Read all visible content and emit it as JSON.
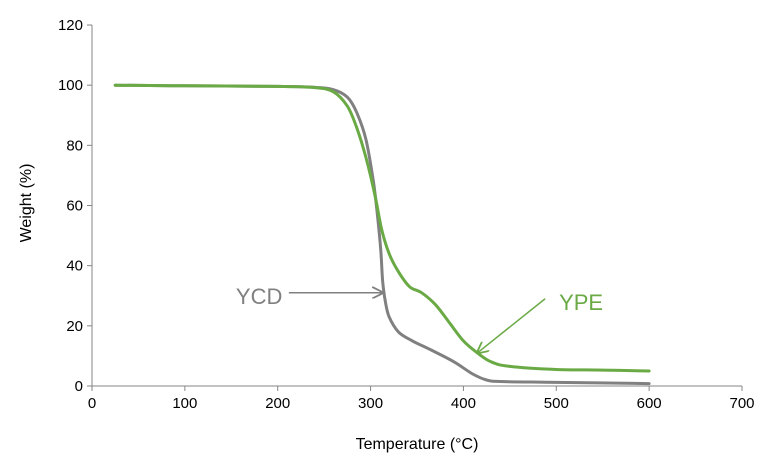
{
  "chart_data": {
    "type": "line",
    "title": "",
    "xlabel": "Temperature (°C)",
    "ylabel": "Weight (%)",
    "xlim": [
      0,
      700
    ],
    "ylim": [
      0,
      120
    ],
    "x_ticks": [
      0,
      100,
      200,
      300,
      400,
      500,
      600,
      700
    ],
    "y_ticks": [
      0,
      20,
      40,
      60,
      80,
      100,
      120
    ],
    "grid": false,
    "legend": "none",
    "series": [
      {
        "name": "YCD",
        "color": "#808080",
        "points": [
          [
            25,
            100
          ],
          [
            100,
            99.8
          ],
          [
            200,
            99.6
          ],
          [
            240,
            99.3
          ],
          [
            260,
            98.5
          ],
          [
            275,
            96
          ],
          [
            285,
            91
          ],
          [
            295,
            82
          ],
          [
            303,
            68
          ],
          [
            308,
            55
          ],
          [
            311,
            45
          ],
          [
            313,
            35
          ],
          [
            316,
            28
          ],
          [
            320,
            23
          ],
          [
            330,
            18
          ],
          [
            345,
            15
          ],
          [
            365,
            12
          ],
          [
            390,
            8
          ],
          [
            410,
            4
          ],
          [
            425,
            2
          ],
          [
            440,
            1.5
          ],
          [
            500,
            1.2
          ],
          [
            600,
            0.8
          ]
        ]
      },
      {
        "name": "YPE",
        "color": "#6aaa45",
        "points": [
          [
            25,
            100
          ],
          [
            100,
            99.8
          ],
          [
            200,
            99.6
          ],
          [
            240,
            99.2
          ],
          [
            260,
            97.8
          ],
          [
            275,
            93
          ],
          [
            285,
            86
          ],
          [
            295,
            76
          ],
          [
            305,
            63
          ],
          [
            312,
            52
          ],
          [
            320,
            44
          ],
          [
            330,
            38
          ],
          [
            342,
            33
          ],
          [
            355,
            31
          ],
          [
            370,
            27
          ],
          [
            385,
            21
          ],
          [
            400,
            15
          ],
          [
            415,
            11
          ],
          [
            430,
            8
          ],
          [
            450,
            6.5
          ],
          [
            500,
            5.5
          ],
          [
            550,
            5.3
          ],
          [
            600,
            5
          ]
        ]
      }
    ],
    "annotations": [
      {
        "text": "YCD",
        "series": "YCD",
        "color": "#808080",
        "label_at": [
          155,
          30
        ],
        "arrow_from": [
          212,
          31
        ],
        "arrow_to": [
          313,
          31
        ]
      },
      {
        "text": "YPE",
        "series": "YPE",
        "color": "#6aaa45",
        "label_at": [
          503,
          28
        ],
        "arrow_from": [
          488,
          29
        ],
        "arrow_to": [
          415,
          11
        ]
      }
    ]
  }
}
